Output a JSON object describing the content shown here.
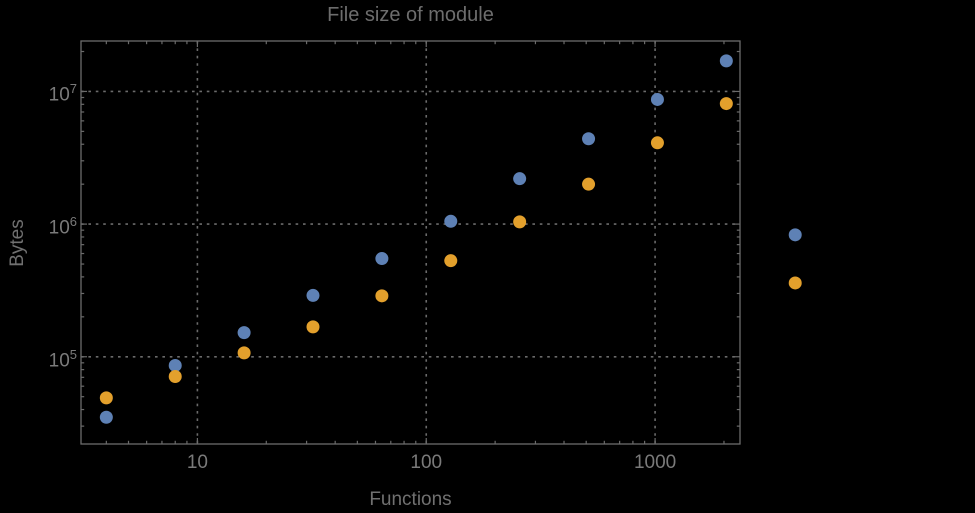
{
  "title": "File size of module",
  "axes": {
    "xlabel": "Functions",
    "ylabel": "Bytes"
  },
  "colors": {
    "background": "#000000",
    "frame": "#6b6b6b",
    "gridline": "#6b6b6b",
    "tick_label": "#7a7a7a",
    "title_text": "#6d6d6d",
    "series_blue": "#5e81b5",
    "series_orange": "#e3a02c"
  },
  "chart_data": {
    "type": "scatter",
    "title": "File size of module",
    "xlabel": "Functions",
    "ylabel": "Bytes",
    "x_scale": "log",
    "y_scale": "log",
    "grid": "dotted-major",
    "legend": "none",
    "x": [
      4,
      8,
      16,
      32,
      64,
      128,
      256,
      512,
      1024,
      2048,
      4096
    ],
    "series": [
      {
        "name": "blue",
        "color": "#5e81b5",
        "values": [
          35000,
          86000,
          152000,
          290000,
          550000,
          1050000,
          2200000,
          4400000,
          8700000,
          17000000,
          830000
        ]
      },
      {
        "name": "orange",
        "color": "#e3a02c",
        "values": [
          49000,
          71000,
          107000,
          168000,
          288000,
          530000,
          1040000,
          2000000,
          4100000,
          8100000,
          360000
        ]
      }
    ],
    "x_ticks": [
      10,
      100,
      1000
    ],
    "x_tick_labels": [
      "10",
      "100",
      "1000"
    ],
    "y_ticks": [
      100000,
      1000000,
      10000000
    ],
    "y_tick_labels": [
      [
        "10",
        "5"
      ],
      [
        "10",
        "6"
      ],
      [
        "10",
        "7"
      ]
    ],
    "xlim": [
      3.1,
      2350
    ],
    "ylim": [
      22000,
      24000000
    ],
    "marker_radius": 6.5
  }
}
